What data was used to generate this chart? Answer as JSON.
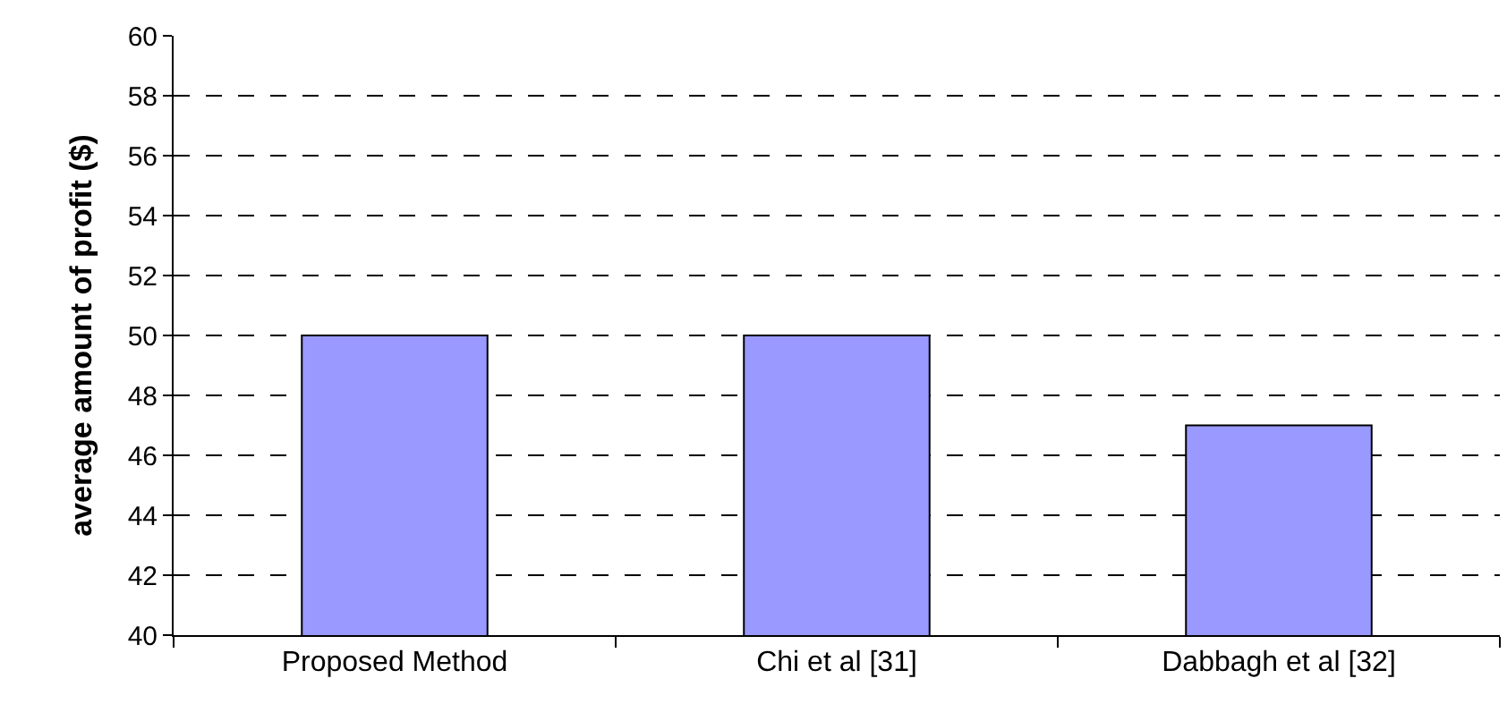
{
  "chart_data": {
    "type": "bar",
    "ylabel": "average amount of profit ($)",
    "categories": [
      "Proposed Method",
      "Chi et al [31]",
      "Dabbagh et al [32]"
    ],
    "values": [
      50,
      50,
      47
    ],
    "color": "#9999ff",
    "ylim": [
      40,
      60
    ],
    "yticks": [
      40,
      42,
      44,
      46,
      48,
      50,
      52,
      54,
      56,
      58,
      60
    ],
    "grid": "y",
    "line_style": "dashed"
  }
}
